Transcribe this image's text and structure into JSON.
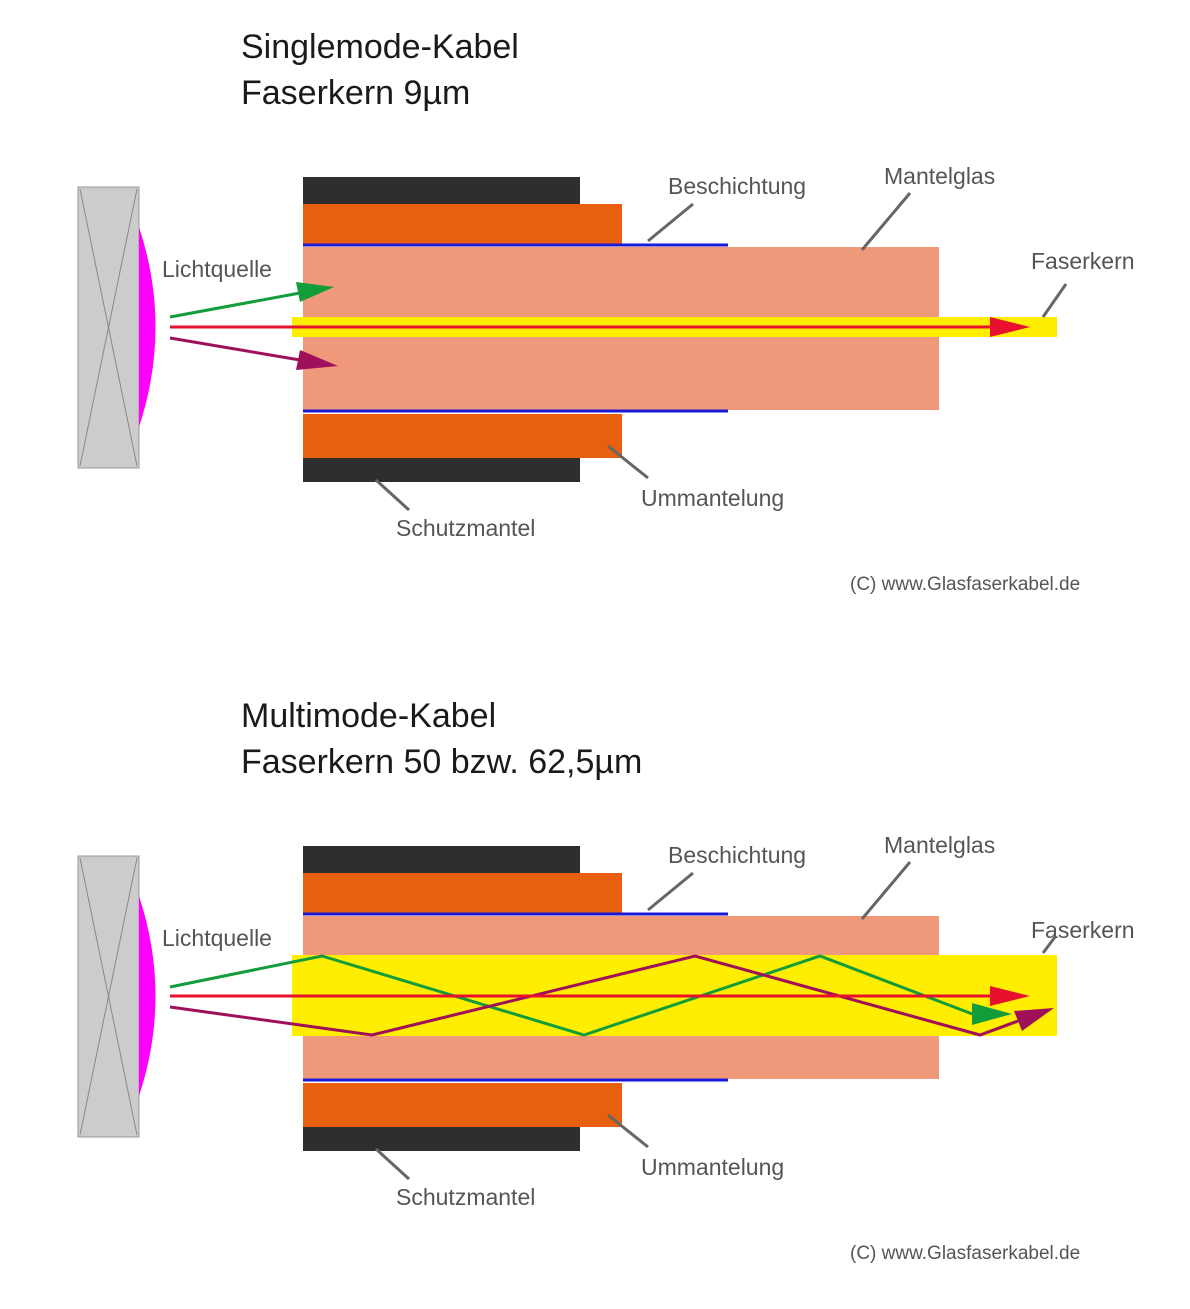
{
  "colors": {
    "schutzmantel": "#2e2e2e",
    "ummantelung": "#e8600f",
    "beschichtung": "#1a1ad6",
    "mantelglas": "#f0997a",
    "faserkern": "#ffee00",
    "lichtquelle_housing": "#cccccc",
    "lichtquelle_lens": "#ff00ff",
    "ray_red": "#e8112d",
    "ray_green": "#139c3a",
    "ray_purple": "#a0105a",
    "leader": "#666666"
  },
  "singlemode": {
    "title_line1": "Singlemode-Kabel",
    "title_line2": "Faserkern 9µm",
    "labels": {
      "beschichtung": "Beschichtung",
      "mantelglas": "Mantelglas",
      "lichtquelle": "Lichtquelle",
      "faserkern": "Faserkern",
      "ummantelung": "Ummantelung",
      "schutzmantel": "Schutzmantel"
    },
    "copyright": "(C) www.Glasfaserkabel.de"
  },
  "multimode": {
    "title_line1": "Multimode-Kabel",
    "title_line2": "Faserkern 50 bzw. 62,5µm",
    "labels": {
      "beschichtung": "Beschichtung",
      "mantelglas": "Mantelglas",
      "lichtquelle": "Lichtquelle",
      "faserkern": "Faserkern",
      "ummantelung": "Ummantelung",
      "schutzmantel": "Schutzmantel"
    },
    "copyright": "(C) www.Glasfaserkabel.de"
  }
}
